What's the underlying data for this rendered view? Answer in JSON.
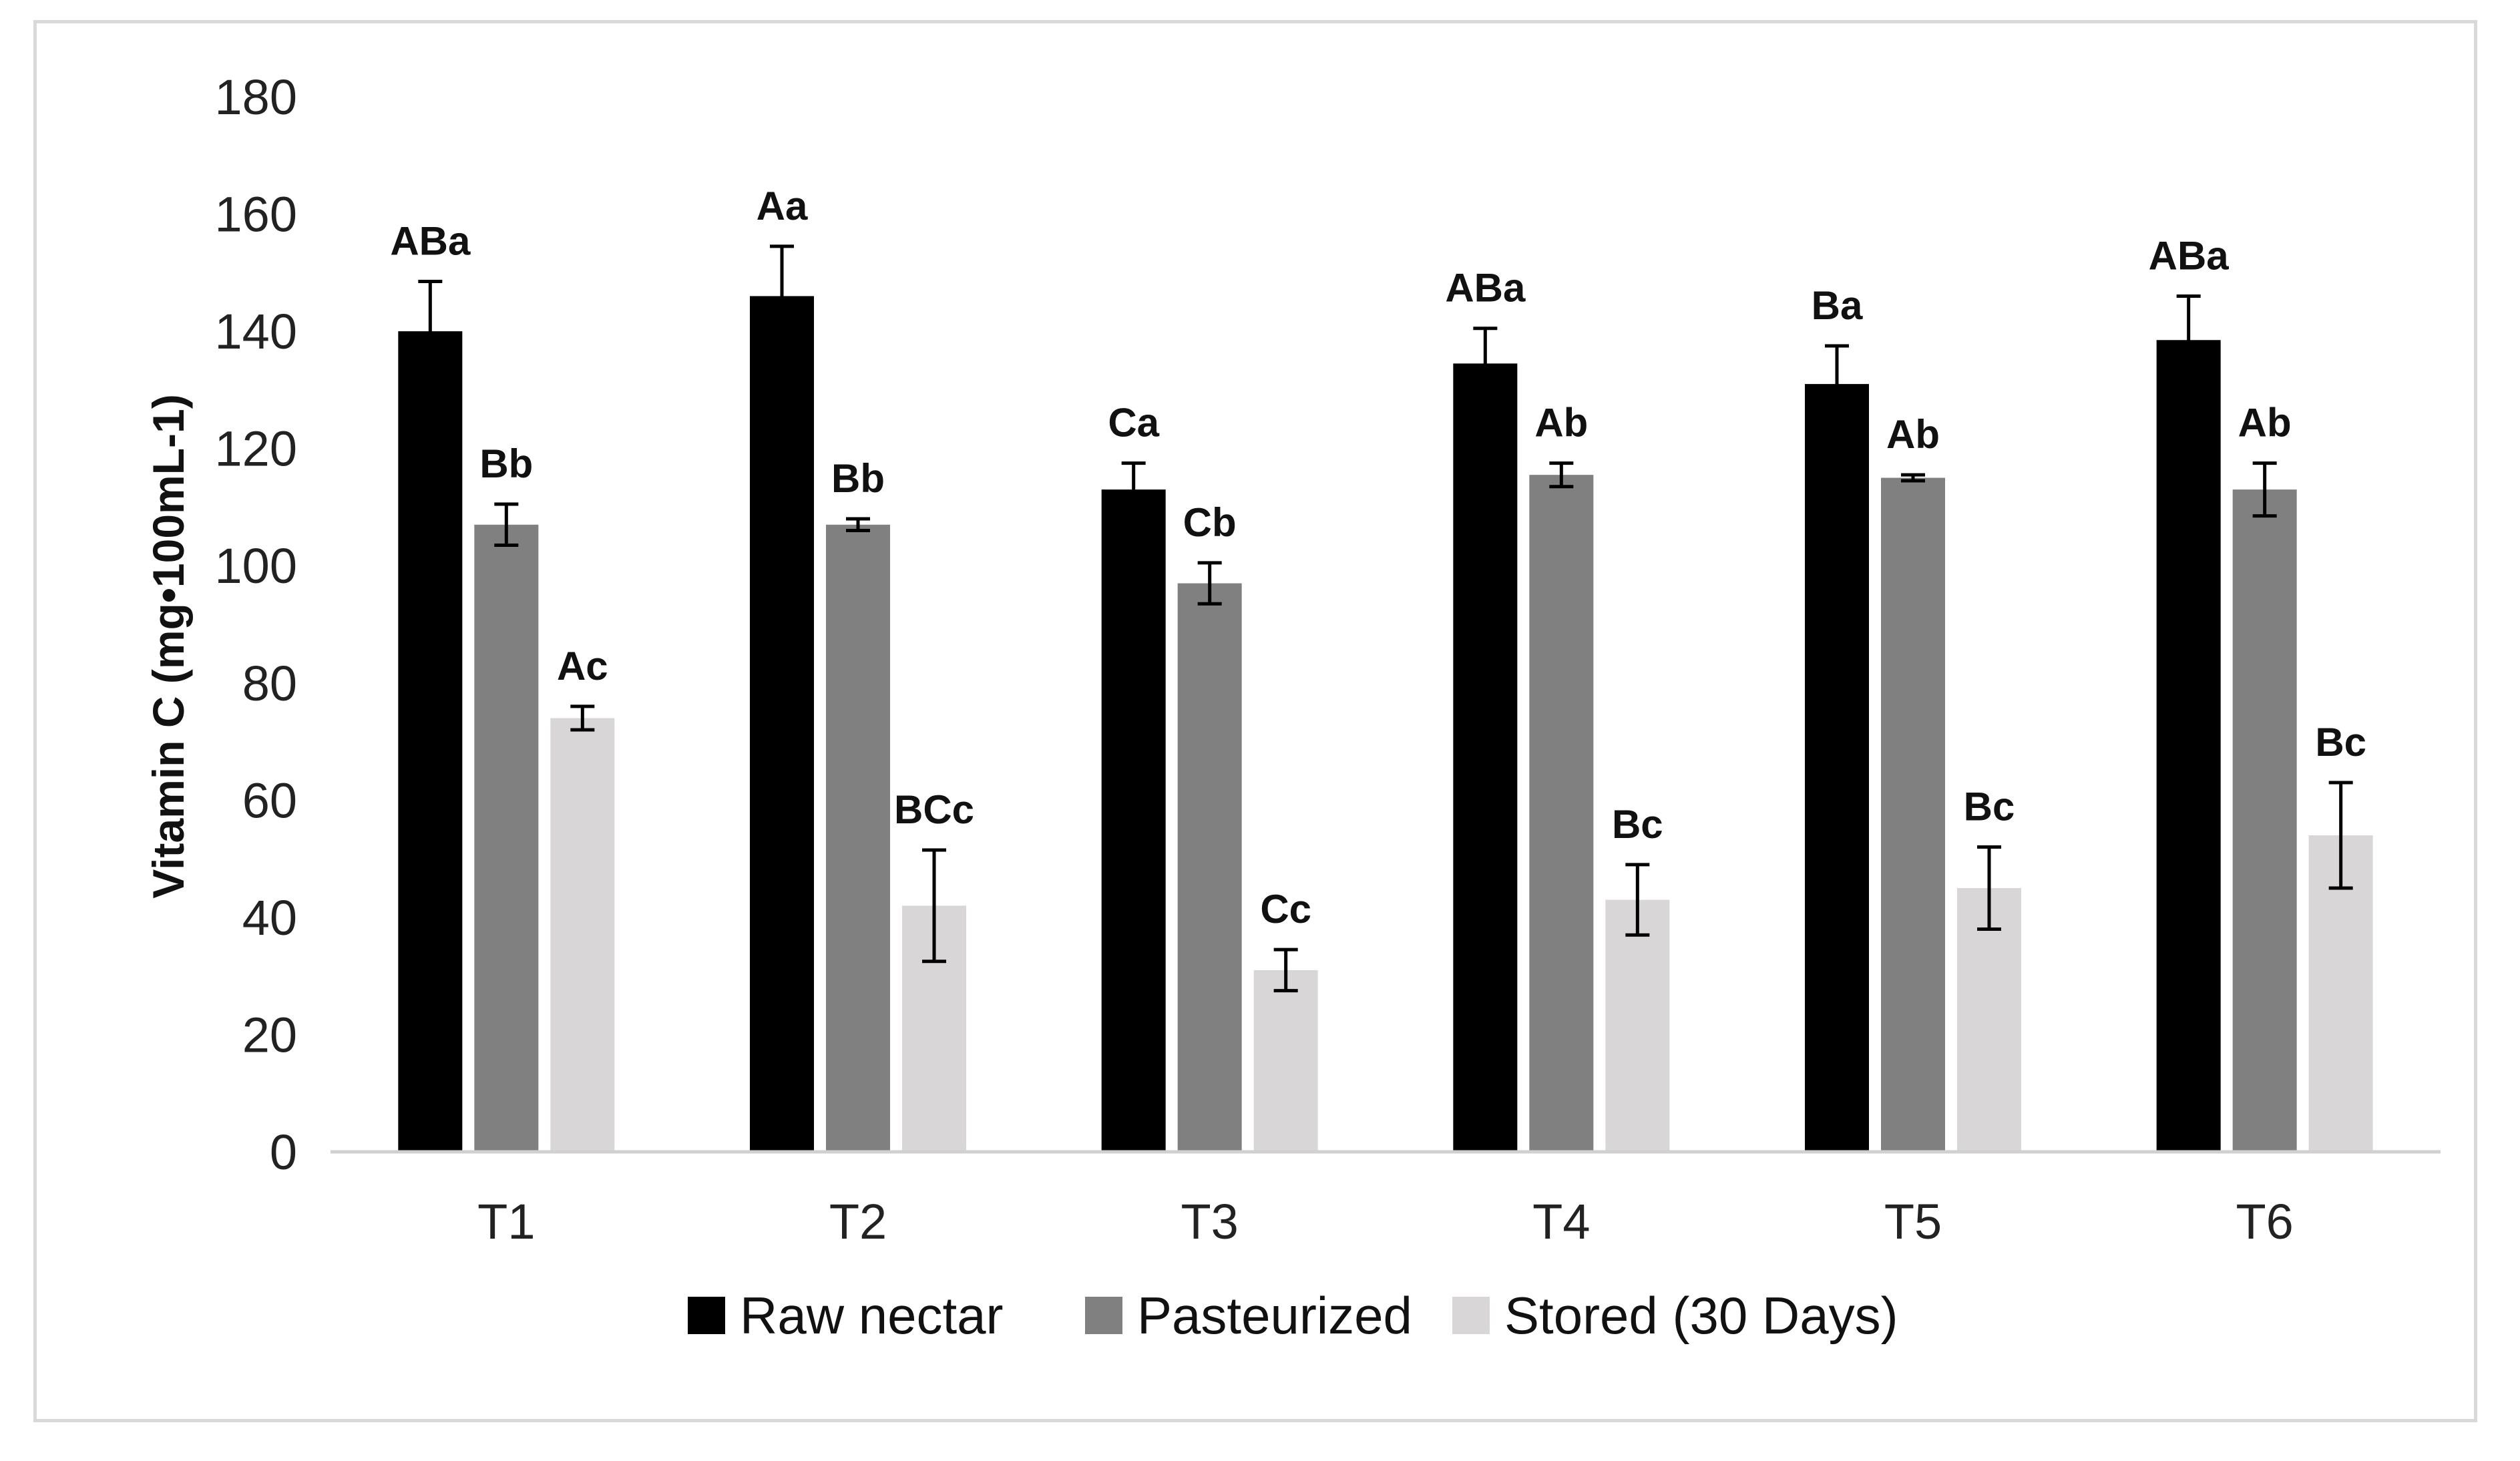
{
  "chart_data": {
    "type": "bar",
    "title": "",
    "xlabel": "",
    "ylabel": "Vitamin C  (mg•100mL-1)",
    "ylim": [
      0,
      180
    ],
    "yticks": [
      0,
      20,
      40,
      60,
      80,
      100,
      120,
      140,
      160,
      180
    ],
    "grid": false,
    "legend_position": "bottom",
    "categories": [
      "T1",
      "T2",
      "T3",
      "T4",
      "T5",
      "T6"
    ],
    "series": [
      {
        "name": "Raw nectar",
        "color": "#000000",
        "values": [
          140,
          146,
          113,
          134.5,
          131,
          138.5
        ],
        "errors": [
          8.5,
          8.5,
          4.5,
          6,
          6.5,
          7.5
        ],
        "labels": [
          "ABa",
          "Aa",
          "Ca",
          "ABa",
          "Ba",
          "ABa"
        ]
      },
      {
        "name": "Pasteurized",
        "color": "#808080",
        "values": [
          107,
          107,
          97,
          115.5,
          115,
          113
        ],
        "errors": [
          3.5,
          1,
          3.5,
          2,
          0.5,
          4.5
        ],
        "labels": [
          "Bb",
          "Bb",
          "Cb",
          "Ab",
          "Ab",
          "Ab"
        ]
      },
      {
        "name": "Stored (30 Days)",
        "color": "#d9d6d8",
        "values": [
          74,
          42,
          31,
          43,
          45,
          54
        ],
        "errors": [
          2,
          9.5,
          3.5,
          6,
          7,
          9
        ],
        "labels": [
          "Ac",
          "BCc",
          "Cc",
          "Bc",
          "Bc",
          "Bc"
        ]
      }
    ]
  }
}
